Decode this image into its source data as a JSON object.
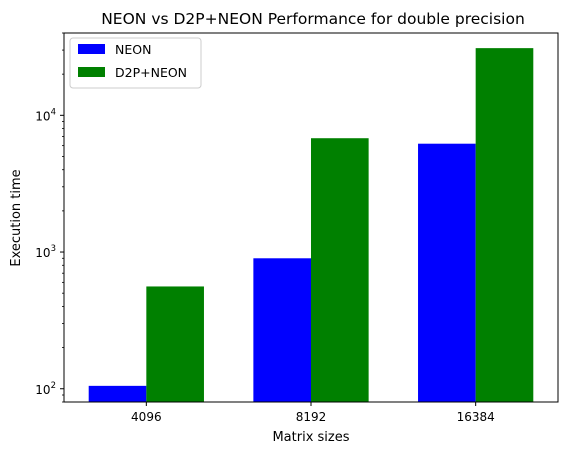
{
  "chart_data": {
    "type": "bar",
    "title": "NEON vs D2P+NEON Performance for double precision",
    "xlabel": "Matrix sizes",
    "ylabel": "Execution time",
    "categories": [
      "4096",
      "8192",
      "16384"
    ],
    "series": [
      {
        "name": "NEON",
        "color": "#0000ff",
        "values": [
          105,
          900,
          6200
        ]
      },
      {
        "name": "D2P+NEON",
        "color": "#008000",
        "values": [
          560,
          6800,
          31000
        ]
      }
    ],
    "yscale": "log",
    "ylim": [
      80,
      40000
    ],
    "yticks": [
      {
        "value": 100,
        "base": "10",
        "exp": "2"
      },
      {
        "value": 1000,
        "base": "10",
        "exp": "3"
      },
      {
        "value": 10000,
        "base": "10",
        "exp": "4"
      }
    ],
    "legend": "top-left",
    "grid": false
  }
}
